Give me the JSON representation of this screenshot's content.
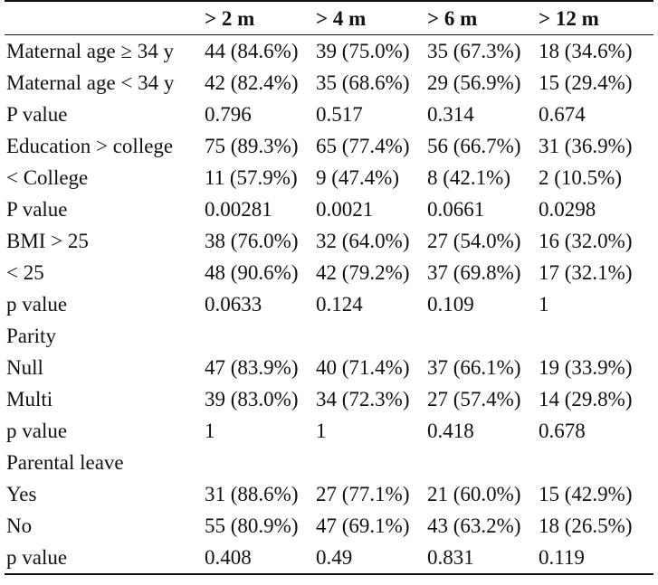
{
  "table": {
    "headers": [
      "",
      "> 2 m",
      "> 4 m",
      "> 6 m",
      "> 12 m"
    ],
    "rows": [
      [
        "Maternal age ≥ 34 y",
        "44 (84.6%)",
        "39 (75.0%)",
        "35 (67.3%)",
        "18 (34.6%)"
      ],
      [
        "Maternal age < 34 y",
        "42 (82.4%)",
        "35 (68.6%)",
        "29 (56.9%)",
        "15 (29.4%)"
      ],
      [
        "P value",
        "0.796",
        "0.517",
        "0.314",
        "0.674"
      ],
      [
        "Education > college",
        "75 (89.3%)",
        "65 (77.4%)",
        "56 (66.7%)",
        "31 (36.9%)"
      ],
      [
        "< College",
        "11 (57.9%)",
        "9 (47.4%)",
        "8 (42.1%)",
        "2 (10.5%)"
      ],
      [
        "P value",
        "0.00281",
        "0.0021",
        "0.0661",
        "0.0298"
      ],
      [
        "BMI > 25",
        "38 (76.0%)",
        "32 (64.0%)",
        "27 (54.0%)",
        "16 (32.0%)"
      ],
      [
        "< 25",
        "48 (90.6%)",
        "42 (79.2%)",
        "37 (69.8%)",
        "17 (32.1%)"
      ],
      [
        "p value",
        "0.0633",
        "0.124",
        "0.109",
        "1"
      ],
      [
        "Parity",
        "",
        "",
        "",
        ""
      ],
      [
        "Null",
        "47 (83.9%)",
        "40 (71.4%)",
        "37 (66.1%)",
        "19 (33.9%)"
      ],
      [
        "Multi",
        "39 (83.0%)",
        "34 (72.3%)",
        "27 (57.4%)",
        "14 (29.8%)"
      ],
      [
        "p value",
        "1",
        "1",
        "0.418",
        "0.678"
      ],
      [
        "Parental leave",
        "",
        "",
        "",
        ""
      ],
      [
        "Yes",
        "31 (88.6%)",
        "27 (77.1%)",
        "21 (60.0%)",
        "15 (42.9%)"
      ],
      [
        "No",
        "55 (80.9%)",
        "47 (69.1%)",
        "43 (63.2%)",
        "18 (26.5%)"
      ],
      [
        "p value",
        "0.408",
        "0.49",
        "0.831",
        "0.119"
      ]
    ]
  }
}
